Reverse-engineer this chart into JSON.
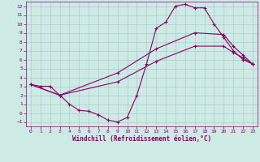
{
  "xlabel": "Windchill (Refroidissement éolien,°C)",
  "background_color": "#ceeae4",
  "grid_color": "#aacccc",
  "line_color": "#880066",
  "xlim": [
    -0.5,
    23.5
  ],
  "ylim": [
    -1.5,
    12.5
  ],
  "xticks": [
    0,
    1,
    2,
    3,
    4,
    5,
    6,
    7,
    8,
    9,
    10,
    11,
    12,
    13,
    14,
    15,
    16,
    17,
    18,
    19,
    20,
    21,
    22,
    23
  ],
  "yticks": [
    -1,
    0,
    1,
    2,
    3,
    4,
    5,
    6,
    7,
    8,
    9,
    10,
    11,
    12
  ],
  "line1_x": [
    0,
    1,
    2,
    3,
    4,
    5,
    6,
    7,
    8,
    9,
    10,
    11,
    12,
    13,
    14,
    15,
    16,
    17,
    18,
    19,
    20,
    21,
    22,
    23
  ],
  "line1_y": [
    3.2,
    3.0,
    3.0,
    2.0,
    1.0,
    0.3,
    0.2,
    -0.2,
    -0.8,
    -1.0,
    -0.5,
    2.0,
    5.5,
    9.5,
    10.2,
    12.0,
    12.2,
    11.8,
    11.8,
    10.0,
    8.5,
    7.0,
    6.0,
    5.5
  ],
  "line2_x": [
    0,
    3,
    9,
    13,
    17,
    20,
    21,
    22,
    23
  ],
  "line2_y": [
    3.2,
    2.0,
    4.5,
    7.2,
    9.0,
    8.8,
    7.5,
    6.5,
    5.5
  ],
  "line3_x": [
    0,
    3,
    9,
    13,
    17,
    20,
    21,
    22,
    23
  ],
  "line3_y": [
    3.2,
    2.0,
    3.5,
    5.8,
    7.5,
    7.5,
    6.8,
    6.2,
    5.5
  ]
}
